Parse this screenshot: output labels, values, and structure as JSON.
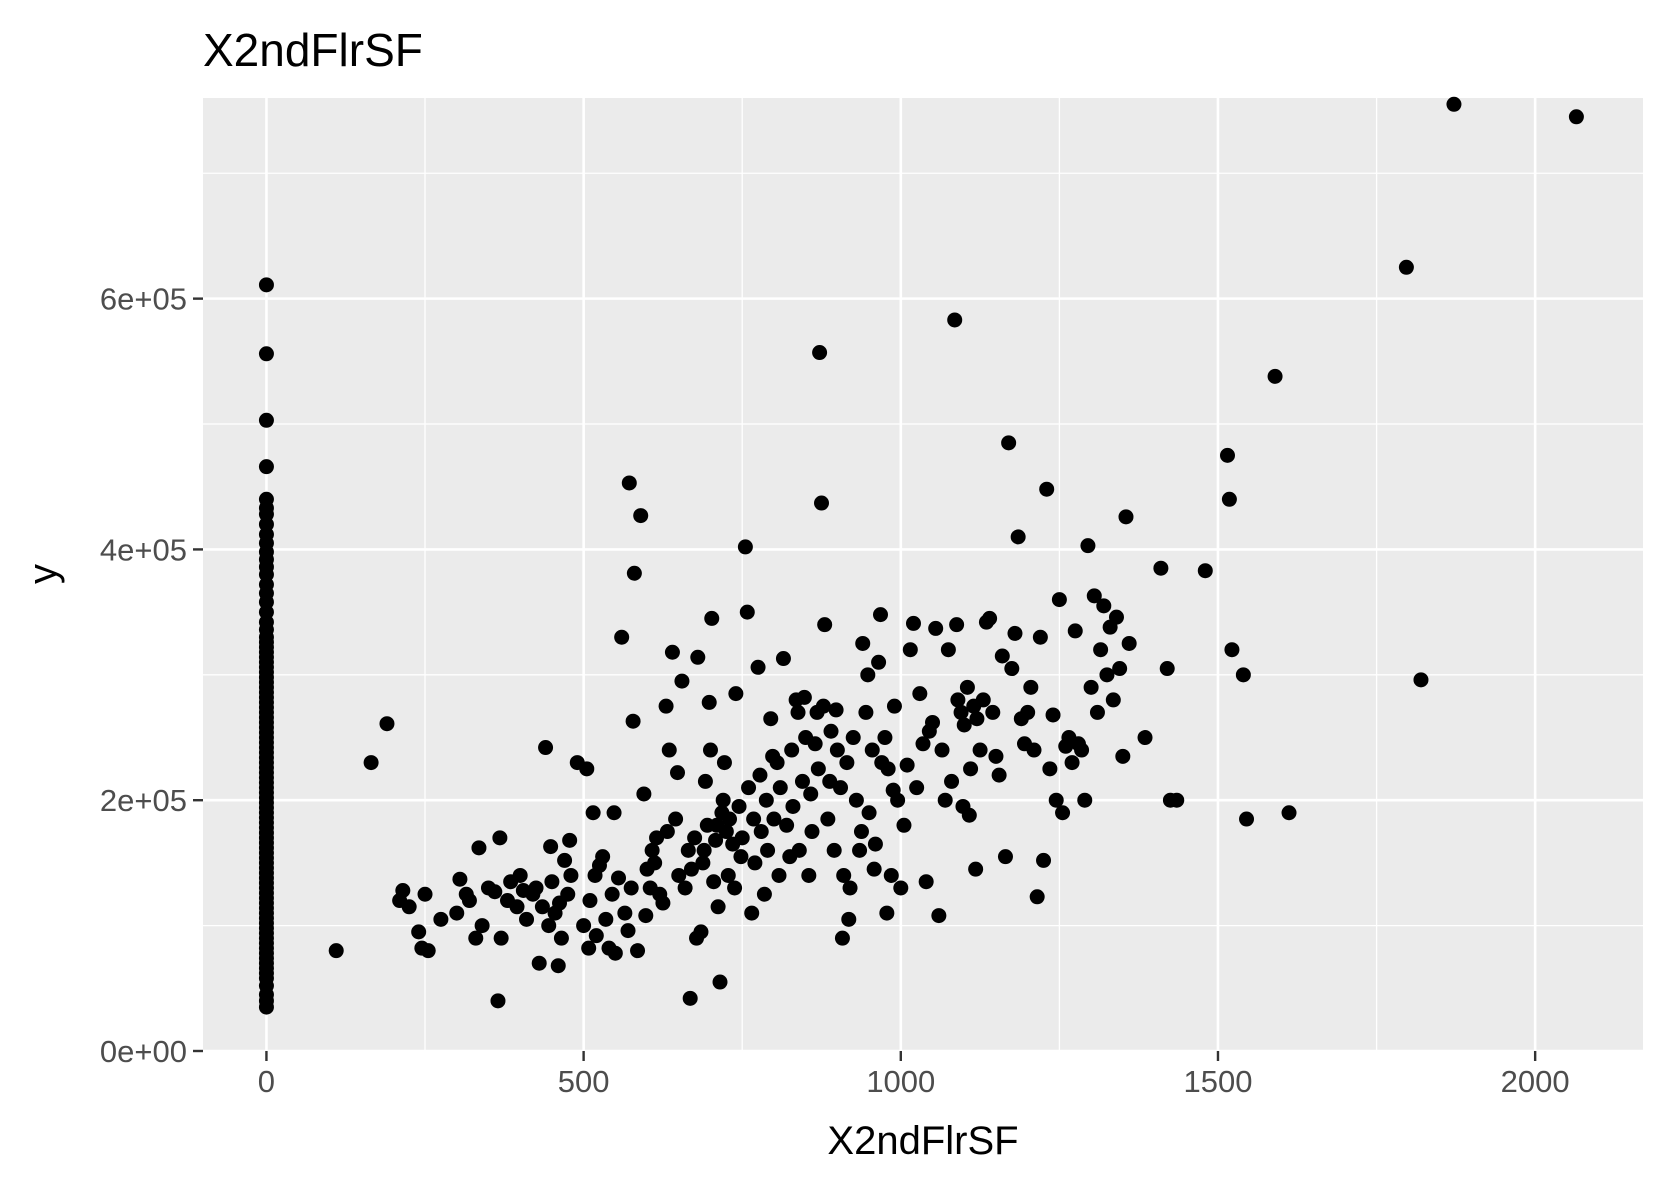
{
  "chart_data": {
    "type": "scatter",
    "title": "X2ndFlrSF",
    "xlabel": "X2ndFlrSF",
    "ylabel": "y",
    "xlim": [
      -100,
      2170
    ],
    "ylim": [
      0,
      760000
    ],
    "x_ticks": [
      0,
      500,
      1000,
      1500,
      2000
    ],
    "x_tick_labels": [
      "0",
      "500",
      "1000",
      "1500",
      "2000"
    ],
    "y_ticks": [
      0,
      200000,
      400000,
      600000
    ],
    "y_tick_labels": [
      "0e+00",
      "2e+05",
      "4e+05",
      "6e+05"
    ],
    "grid": true,
    "legend": "none",
    "point_color": "#000000",
    "panel_color": "#ebebeb",
    "grid_color": "#ffffff",
    "points": [
      [
        0,
        35000
      ],
      [
        0,
        40000
      ],
      [
        0,
        45000
      ],
      [
        0,
        52000
      ],
      [
        0,
        58000
      ],
      [
        0,
        62000
      ],
      [
        0,
        66000
      ],
      [
        0,
        70000
      ],
      [
        0,
        74000
      ],
      [
        0,
        78000
      ],
      [
        0,
        82000
      ],
      [
        0,
        86000
      ],
      [
        0,
        90000
      ],
      [
        0,
        94000
      ],
      [
        0,
        98000
      ],
      [
        0,
        102000
      ],
      [
        0,
        106000
      ],
      [
        0,
        110000
      ],
      [
        0,
        114000
      ],
      [
        0,
        118000
      ],
      [
        0,
        122000
      ],
      [
        0,
        126000
      ],
      [
        0,
        130000
      ],
      [
        0,
        134000
      ],
      [
        0,
        138000
      ],
      [
        0,
        142000
      ],
      [
        0,
        146000
      ],
      [
        0,
        150000
      ],
      [
        0,
        154000
      ],
      [
        0,
        158000
      ],
      [
        0,
        162000
      ],
      [
        0,
        166000
      ],
      [
        0,
        170000
      ],
      [
        0,
        174000
      ],
      [
        0,
        178000
      ],
      [
        0,
        182000
      ],
      [
        0,
        186000
      ],
      [
        0,
        190000
      ],
      [
        0,
        194000
      ],
      [
        0,
        198000
      ],
      [
        0,
        202000
      ],
      [
        0,
        206000
      ],
      [
        0,
        210000
      ],
      [
        0,
        214000
      ],
      [
        0,
        218000
      ],
      [
        0,
        222000
      ],
      [
        0,
        226000
      ],
      [
        0,
        230000
      ],
      [
        0,
        234000
      ],
      [
        0,
        238000
      ],
      [
        0,
        242000
      ],
      [
        0,
        246000
      ],
      [
        0,
        250000
      ],
      [
        0,
        254000
      ],
      [
        0,
        258000
      ],
      [
        0,
        262000
      ],
      [
        0,
        266000
      ],
      [
        0,
        270000
      ],
      [
        0,
        274000
      ],
      [
        0,
        278000
      ],
      [
        0,
        282000
      ],
      [
        0,
        286000
      ],
      [
        0,
        290000
      ],
      [
        0,
        294000
      ],
      [
        0,
        298000
      ],
      [
        0,
        302000
      ],
      [
        0,
        306000
      ],
      [
        0,
        310000
      ],
      [
        0,
        314000
      ],
      [
        0,
        318000
      ],
      [
        0,
        322000
      ],
      [
        0,
        326000
      ],
      [
        0,
        330000
      ],
      [
        0,
        336000
      ],
      [
        0,
        342000
      ],
      [
        0,
        350000
      ],
      [
        0,
        358000
      ],
      [
        0,
        365000
      ],
      [
        0,
        372000
      ],
      [
        0,
        380000
      ],
      [
        0,
        386000
      ],
      [
        0,
        392000
      ],
      [
        0,
        398000
      ],
      [
        0,
        405000
      ],
      [
        0,
        412000
      ],
      [
        0,
        420000
      ],
      [
        0,
        428000
      ],
      [
        0,
        433000
      ],
      [
        0,
        440000
      ],
      [
        0,
        466000
      ],
      [
        0,
        503000
      ],
      [
        0,
        556000
      ],
      [
        0,
        611000
      ],
      [
        110,
        80000
      ],
      [
        165,
        230000
      ],
      [
        190,
        261000
      ],
      [
        210,
        120000
      ],
      [
        215,
        128000
      ],
      [
        225,
        115000
      ],
      [
        240,
        95000
      ],
      [
        245,
        82000
      ],
      [
        250,
        125000
      ],
      [
        255,
        80000
      ],
      [
        275,
        105000
      ],
      [
        300,
        110000
      ],
      [
        305,
        137000
      ],
      [
        315,
        125000
      ],
      [
        320,
        120000
      ],
      [
        330,
        90000
      ],
      [
        335,
        162000
      ],
      [
        340,
        100000
      ],
      [
        350,
        130000
      ],
      [
        360,
        127000
      ],
      [
        365,
        40000
      ],
      [
        368,
        170000
      ],
      [
        370,
        90000
      ],
      [
        380,
        120000
      ],
      [
        385,
        135000
      ],
      [
        395,
        115000
      ],
      [
        400,
        140000
      ],
      [
        405,
        128000
      ],
      [
        410,
        105000
      ],
      [
        420,
        125000
      ],
      [
        425,
        130000
      ],
      [
        430,
        70000
      ],
      [
        435,
        115000
      ],
      [
        440,
        242000
      ],
      [
        445,
        100000
      ],
      [
        448,
        163000
      ],
      [
        450,
        135000
      ],
      [
        455,
        110000
      ],
      [
        460,
        68000
      ],
      [
        462,
        118000
      ],
      [
        465,
        90000
      ],
      [
        470,
        152000
      ],
      [
        475,
        125000
      ],
      [
        478,
        168000
      ],
      [
        480,
        140000
      ],
      [
        490,
        230000
      ],
      [
        500,
        100000
      ],
      [
        505,
        225000
      ],
      [
        508,
        82000
      ],
      [
        510,
        120000
      ],
      [
        515,
        190000
      ],
      [
        518,
        140000
      ],
      [
        520,
        92000
      ],
      [
        525,
        148000
      ],
      [
        530,
        155000
      ],
      [
        535,
        105000
      ],
      [
        540,
        82000
      ],
      [
        545,
        125000
      ],
      [
        548,
        190000
      ],
      [
        550,
        78000
      ],
      [
        555,
        138000
      ],
      [
        560,
        330000
      ],
      [
        565,
        110000
      ],
      [
        570,
        96000
      ],
      [
        572,
        453000
      ],
      [
        575,
        130000
      ],
      [
        578,
        263000
      ],
      [
        580,
        381000
      ],
      [
        585,
        80000
      ],
      [
        590,
        427000
      ],
      [
        595,
        205000
      ],
      [
        598,
        108000
      ],
      [
        600,
        145000
      ],
      [
        605,
        130000
      ],
      [
        608,
        160000
      ],
      [
        612,
        150000
      ],
      [
        615,
        170000
      ],
      [
        620,
        125000
      ],
      [
        625,
        118000
      ],
      [
        630,
        275000
      ],
      [
        632,
        175000
      ],
      [
        635,
        240000
      ],
      [
        640,
        318000
      ],
      [
        645,
        185000
      ],
      [
        648,
        222000
      ],
      [
        650,
        140000
      ],
      [
        655,
        295000
      ],
      [
        660,
        130000
      ],
      [
        665,
        160000
      ],
      [
        668,
        42000
      ],
      [
        670,
        145000
      ],
      [
        675,
        170000
      ],
      [
        678,
        90000
      ],
      [
        680,
        314000
      ],
      [
        685,
        95000
      ],
      [
        688,
        150000
      ],
      [
        690,
        160000
      ],
      [
        692,
        215000
      ],
      [
        695,
        180000
      ],
      [
        698,
        278000
      ],
      [
        700,
        240000
      ],
      [
        702,
        345000
      ],
      [
        705,
        135000
      ],
      [
        708,
        168000
      ],
      [
        710,
        180000
      ],
      [
        712,
        115000
      ],
      [
        715,
        55000
      ],
      [
        718,
        190000
      ],
      [
        720,
        200000
      ],
      [
        722,
        230000
      ],
      [
        725,
        175000
      ],
      [
        728,
        140000
      ],
      [
        730,
        185000
      ],
      [
        735,
        165000
      ],
      [
        738,
        130000
      ],
      [
        740,
        285000
      ],
      [
        745,
        195000
      ],
      [
        748,
        155000
      ],
      [
        750,
        170000
      ],
      [
        755,
        402000
      ],
      [
        758,
        350000
      ],
      [
        760,
        210000
      ],
      [
        765,
        110000
      ],
      [
        768,
        185000
      ],
      [
        770,
        150000
      ],
      [
        775,
        306000
      ],
      [
        778,
        220000
      ],
      [
        780,
        175000
      ],
      [
        785,
        125000
      ],
      [
        788,
        200000
      ],
      [
        790,
        160000
      ],
      [
        795,
        265000
      ],
      [
        798,
        235000
      ],
      [
        800,
        185000
      ],
      [
        805,
        230000
      ],
      [
        808,
        140000
      ],
      [
        810,
        210000
      ],
      [
        815,
        313000
      ],
      [
        820,
        180000
      ],
      [
        825,
        155000
      ],
      [
        828,
        240000
      ],
      [
        830,
        195000
      ],
      [
        835,
        280000
      ],
      [
        838,
        270000
      ],
      [
        840,
        160000
      ],
      [
        845,
        215000
      ],
      [
        848,
        282000
      ],
      [
        850,
        250000
      ],
      [
        855,
        140000
      ],
      [
        858,
        205000
      ],
      [
        860,
        175000
      ],
      [
        865,
        245000
      ],
      [
        868,
        270000
      ],
      [
        870,
        225000
      ],
      [
        872,
        557000
      ],
      [
        875,
        437000
      ],
      [
        878,
        275000
      ],
      [
        880,
        340000
      ],
      [
        885,
        185000
      ],
      [
        888,
        215000
      ],
      [
        890,
        255000
      ],
      [
        895,
        160000
      ],
      [
        898,
        272000
      ],
      [
        900,
        240000
      ],
      [
        905,
        210000
      ],
      [
        908,
        90000
      ],
      [
        910,
        140000
      ],
      [
        915,
        230000
      ],
      [
        918,
        105000
      ],
      [
        920,
        130000
      ],
      [
        925,
        250000
      ],
      [
        930,
        200000
      ],
      [
        935,
        160000
      ],
      [
        938,
        175000
      ],
      [
        940,
        325000
      ],
      [
        945,
        270000
      ],
      [
        948,
        300000
      ],
      [
        950,
        190000
      ],
      [
        955,
        240000
      ],
      [
        958,
        145000
      ],
      [
        960,
        165000
      ],
      [
        965,
        310000
      ],
      [
        968,
        348000
      ],
      [
        970,
        230000
      ],
      [
        975,
        250000
      ],
      [
        978,
        110000
      ],
      [
        980,
        225000
      ],
      [
        985,
        140000
      ],
      [
        988,
        208000
      ],
      [
        990,
        275000
      ],
      [
        995,
        200000
      ],
      [
        1000,
        130000
      ],
      [
        1005,
        180000
      ],
      [
        1010,
        228000
      ],
      [
        1015,
        320000
      ],
      [
        1020,
        341000
      ],
      [
        1025,
        210000
      ],
      [
        1030,
        285000
      ],
      [
        1035,
        245000
      ],
      [
        1040,
        135000
      ],
      [
        1045,
        255000
      ],
      [
        1050,
        262000
      ],
      [
        1055,
        337000
      ],
      [
        1060,
        108000
      ],
      [
        1065,
        240000
      ],
      [
        1070,
        200000
      ],
      [
        1075,
        320000
      ],
      [
        1080,
        215000
      ],
      [
        1085,
        583000
      ],
      [
        1088,
        340000
      ],
      [
        1090,
        280000
      ],
      [
        1095,
        270000
      ],
      [
        1098,
        195000
      ],
      [
        1100,
        260000
      ],
      [
        1105,
        290000
      ],
      [
        1108,
        188000
      ],
      [
        1110,
        225000
      ],
      [
        1115,
        275000
      ],
      [
        1118,
        145000
      ],
      [
        1120,
        265000
      ],
      [
        1125,
        240000
      ],
      [
        1130,
        280000
      ],
      [
        1135,
        342000
      ],
      [
        1140,
        345000
      ],
      [
        1145,
        270000
      ],
      [
        1150,
        235000
      ],
      [
        1155,
        220000
      ],
      [
        1160,
        315000
      ],
      [
        1165,
        155000
      ],
      [
        1170,
        485000
      ],
      [
        1175,
        305000
      ],
      [
        1180,
        333000
      ],
      [
        1185,
        410000
      ],
      [
        1190,
        265000
      ],
      [
        1195,
        245000
      ],
      [
        1200,
        270000
      ],
      [
        1205,
        290000
      ],
      [
        1210,
        240000
      ],
      [
        1215,
        123000
      ],
      [
        1220,
        330000
      ],
      [
        1225,
        152000
      ],
      [
        1230,
        448000
      ],
      [
        1235,
        225000
      ],
      [
        1240,
        268000
      ],
      [
        1245,
        200000
      ],
      [
        1250,
        360000
      ],
      [
        1255,
        190000
      ],
      [
        1260,
        243000
      ],
      [
        1265,
        250000
      ],
      [
        1270,
        230000
      ],
      [
        1275,
        335000
      ],
      [
        1280,
        245000
      ],
      [
        1285,
        240000
      ],
      [
        1290,
        200000
      ],
      [
        1295,
        403000
      ],
      [
        1300,
        290000
      ],
      [
        1305,
        363000
      ],
      [
        1310,
        270000
      ],
      [
        1315,
        320000
      ],
      [
        1320,
        355000
      ],
      [
        1325,
        300000
      ],
      [
        1330,
        338000
      ],
      [
        1335,
        280000
      ],
      [
        1340,
        346000
      ],
      [
        1345,
        305000
      ],
      [
        1350,
        235000
      ],
      [
        1355,
        426000
      ],
      [
        1360,
        325000
      ],
      [
        1385,
        250000
      ],
      [
        1410,
        385000
      ],
      [
        1420,
        305000
      ],
      [
        1425,
        200000
      ],
      [
        1435,
        200000
      ],
      [
        1480,
        383000
      ],
      [
        1515,
        475000
      ],
      [
        1518,
        440000
      ],
      [
        1522,
        320000
      ],
      [
        1540,
        300000
      ],
      [
        1545,
        185000
      ],
      [
        1590,
        538000
      ],
      [
        1612,
        190000
      ],
      [
        1797,
        625000
      ],
      [
        1820,
        296000
      ],
      [
        1872,
        755000
      ],
      [
        2065,
        745000
      ]
    ]
  }
}
